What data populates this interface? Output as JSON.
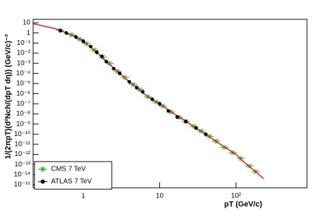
{
  "chart_data": {
    "type": "scatter",
    "xlabel": "pT (GeV/c)",
    "ylabel": "1/(2πpT)(d²Nch/(dpT dη)) (GeV/c)⁻²",
    "xscale": "log",
    "yscale": "log",
    "xlim": [
      0.22,
      850
    ],
    "ylim": [
      5e-16,
      22
    ],
    "xticks": [
      1,
      10,
      {
        "value": 100,
        "label": "10²"
      }
    ],
    "yticks": [
      10,
      1,
      {
        "value": 0.1,
        "label": "10⁻¹"
      },
      {
        "value": 0.01,
        "label": "10⁻²"
      },
      {
        "value": 0.001,
        "label": "10⁻³"
      },
      {
        "value": 0.0001,
        "label": "10⁻⁴"
      },
      {
        "value": 1e-05,
        "label": "10⁻⁵"
      },
      {
        "value": 1e-06,
        "label": "10⁻⁶"
      },
      {
        "value": 1e-07,
        "label": "10⁻⁷"
      },
      {
        "value": 1e-08,
        "label": "10⁻⁸"
      },
      {
        "value": 1e-09,
        "label": "10⁻⁹"
      },
      {
        "value": 1e-10,
        "label": "10⁻¹⁰"
      },
      {
        "value": 1e-11,
        "label": "10⁻¹¹"
      },
      {
        "value": 1e-12,
        "label": "10⁻¹²"
      },
      {
        "value": 1e-13,
        "label": "10⁻¹³"
      },
      {
        "value": 1e-14,
        "label": "10⁻¹⁴"
      },
      {
        "value": 1e-15,
        "label": "10⁻¹⁵"
      }
    ],
    "legend": "lower left",
    "series": [
      {
        "name": "CMS 7 TeV",
        "style": "star",
        "color": "#4caf50",
        "x": [
          0.5,
          0.7,
          0.9,
          1.1,
          1.4,
          1.8,
          2.2,
          2.8,
          3.5,
          4.5,
          5.5,
          7,
          9,
          11,
          14,
          18,
          22,
          28,
          35,
          45,
          55,
          70,
          90,
          115,
          150,
          180
        ],
        "values": [
          1.8,
          0.65,
          0.24,
          0.09,
          0.02,
          0.004,
          0.001,
          0.00016,
          4e-05,
          8e-06,
          2.5e-06,
          5e-07,
          1.5e-07,
          6e-08,
          1.6e-08,
          4.5e-09,
          1.8e-09,
          6e-10,
          2e-10,
          6e-11,
          2e-11,
          5e-12,
          1.5e-12,
          4e-13,
          7e-14,
          2e-14
        ]
      },
      {
        "name": "ATLAS 7 TeV",
        "style": "circle",
        "color": "#000000",
        "x": [
          0.5,
          0.6,
          0.8,
          1.0,
          1.25,
          1.5,
          1.75,
          2,
          2.5,
          3,
          4,
          5,
          6,
          8,
          10,
          13,
          17,
          22,
          30,
          40
        ],
        "values": [
          1.7,
          1.0,
          0.4,
          0.15,
          0.045,
          0.012,
          0.005,
          0.0015,
          0.0003,
          0.0001,
          1.5e-05,
          4e-06,
          1.5e-06,
          2.8e-07,
          1e-07,
          2e-08,
          5e-09,
          1.8e-09,
          4e-10,
          1e-10
        ]
      },
      {
        "style": "line",
        "color": "#e32020",
        "x": [
          0.22,
          0.4,
          0.5,
          0.6,
          0.8,
          1.0,
          1.5,
          2,
          3,
          4,
          5,
          7,
          10,
          15,
          20,
          30,
          40,
          60,
          80,
          100,
          130,
          180,
          230
        ],
        "values": [
          8,
          3,
          1.8,
          1.0,
          0.4,
          0.15,
          0.012,
          0.0015,
          0.0001,
          1.5e-05,
          4e-06,
          5e-07,
          1e-07,
          1.2e-08,
          3e-09,
          4e-10,
          1e-10,
          1.2e-11,
          3e-12,
          1e-12,
          1.5e-13,
          2e-14,
          4e-15
        ]
      }
    ]
  }
}
